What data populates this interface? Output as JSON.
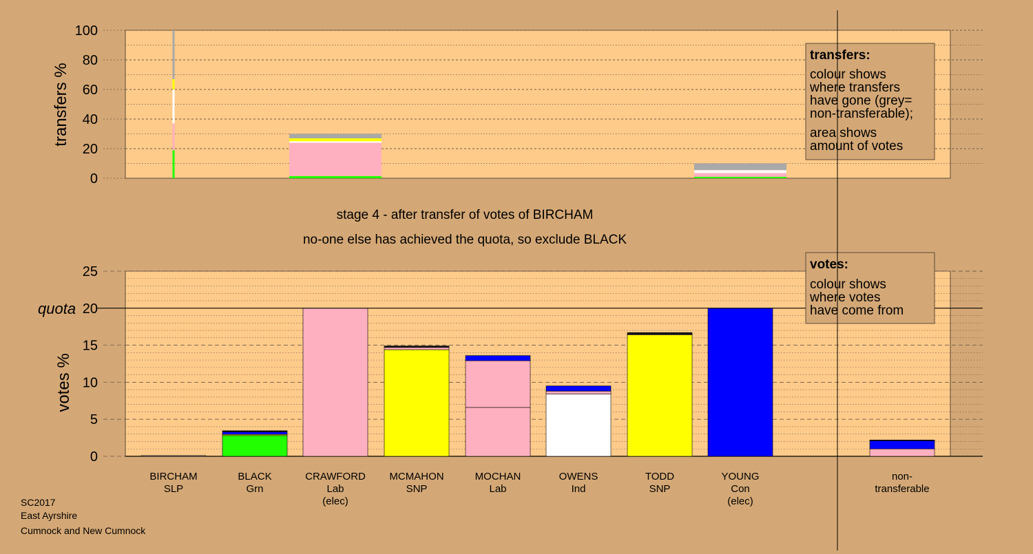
{
  "stage_title": "stage 4 - after transfer of votes of BIRCHAM",
  "stage_subtitle": "no-one else has achieved the quota, so exclude BLACK",
  "footer": [
    "SC2017",
    "East Ayrshire",
    "Cumnock and New Cumnock"
  ],
  "colors": {
    "background": "#d4a876",
    "plot": "#ffcb8a",
    "SLP": "#a9a9a9",
    "Grn": "#22ff00",
    "Lab": "#ffb0c0",
    "SNP": "#ffff00",
    "Ind": "#ffffff",
    "Con": "#0000ff",
    "Nontransferable": "#a9a9a9",
    "dark": "#111111"
  },
  "transfers_legend": {
    "title": "transfers:",
    "lines": [
      "colour shows",
      "where transfers",
      "have gone (grey=",
      "non-transferable);",
      "area shows",
      "amount of votes"
    ]
  },
  "votes_legend": {
    "title": "votes:",
    "lines": [
      "colour shows",
      "where votes",
      "have come from"
    ]
  },
  "chart_data": [
    {
      "type": "bar",
      "name": "transfers",
      "ylabel": "transfers %",
      "ylim": [
        0,
        100
      ],
      "yticks": [
        0,
        20,
        40,
        60,
        80,
        100
      ],
      "grid": true,
      "bars": [
        {
          "x": 0,
          "width": "thin",
          "segments": [
            {
              "party": "Grn",
              "value": 19
            },
            {
              "party": "Lab",
              "value": 18
            },
            {
              "party": "Ind",
              "value": 23
            },
            {
              "party": "SNP",
              "value": 7
            },
            {
              "party": "Nontransferable",
              "value": 33
            }
          ]
        },
        {
          "x": 2,
          "width": "wide",
          "segments": [
            {
              "party": "Grn",
              "value": 1.5
            },
            {
              "party": "Lab",
              "value": 22.5
            },
            {
              "party": "Ind",
              "value": 1
            },
            {
              "party": "SNP",
              "value": 2
            },
            {
              "party": "Nontransferable",
              "value": 3
            }
          ]
        },
        {
          "x": 7,
          "width": "wide",
          "segments": [
            {
              "party": "Grn",
              "value": 1
            },
            {
              "party": "Lab",
              "value": 2.5
            },
            {
              "party": "Ind",
              "value": 2
            },
            {
              "party": "Nontransferable",
              "value": 4.5
            }
          ]
        }
      ]
    },
    {
      "type": "bar",
      "name": "votes",
      "ylabel": "votes %",
      "ylim": [
        0,
        25
      ],
      "yticks": [
        0,
        5,
        10,
        15,
        20,
        25
      ],
      "quota": 20,
      "quota_label": "quota",
      "grid": true,
      "candidates": [
        {
          "name": "BIRCHAM",
          "party": "SLP",
          "note": "",
          "segments": [
            {
              "color": "SLP",
              "value": 0.1
            }
          ]
        },
        {
          "name": "BLACK",
          "party": "Grn",
          "note": "",
          "segments": [
            {
              "color": "Grn",
              "value": 2.8
            },
            {
              "color": "SNP",
              "value": 0.15
            },
            {
              "color": "Con",
              "value": 0.35
            },
            {
              "color": "dark",
              "value": 0.15
            }
          ]
        },
        {
          "name": "CRAWFORD",
          "party": "Lab",
          "note": "(elec)",
          "segments": [
            {
              "color": "Lab",
              "value": 20
            }
          ]
        },
        {
          "name": "MCMAHON",
          "party": "SNP",
          "note": "",
          "segments": [
            {
              "color": "SNP",
              "value": 14.4
            },
            {
              "color": "Lab",
              "value": 0.3
            },
            {
              "color": "dark",
              "value": 0.2
            }
          ]
        },
        {
          "name": "MOCHAN",
          "party": "Lab",
          "note": "",
          "segments": [
            {
              "color": "Lab",
              "value": 6.6
            },
            {
              "color": "Lab",
              "value": 6.3
            },
            {
              "color": "Con",
              "value": 0.7
            }
          ]
        },
        {
          "name": "OWENS",
          "party": "Ind",
          "note": "",
          "segments": [
            {
              "color": "Ind",
              "value": 8.4
            },
            {
              "color": "Lab",
              "value": 0.4
            },
            {
              "color": "Con",
              "value": 0.7
            }
          ]
        },
        {
          "name": "TODD",
          "party": "SNP",
          "note": "",
          "segments": [
            {
              "color": "SNP",
              "value": 16.4
            },
            {
              "color": "Lab",
              "value": 0.1
            },
            {
              "color": "dark",
              "value": 0.2
            }
          ]
        },
        {
          "name": "YOUNG",
          "party": "Con",
          "note": "(elec)",
          "segments": [
            {
              "color": "Con",
              "value": 20
            }
          ]
        },
        {
          "name": "non-",
          "party": "transferable",
          "note": "",
          "segments": [
            {
              "color": "Lab",
              "value": 1.0
            },
            {
              "color": "Con",
              "value": 1.1
            },
            {
              "color": "dark",
              "value": 0.1
            }
          ]
        }
      ]
    }
  ]
}
